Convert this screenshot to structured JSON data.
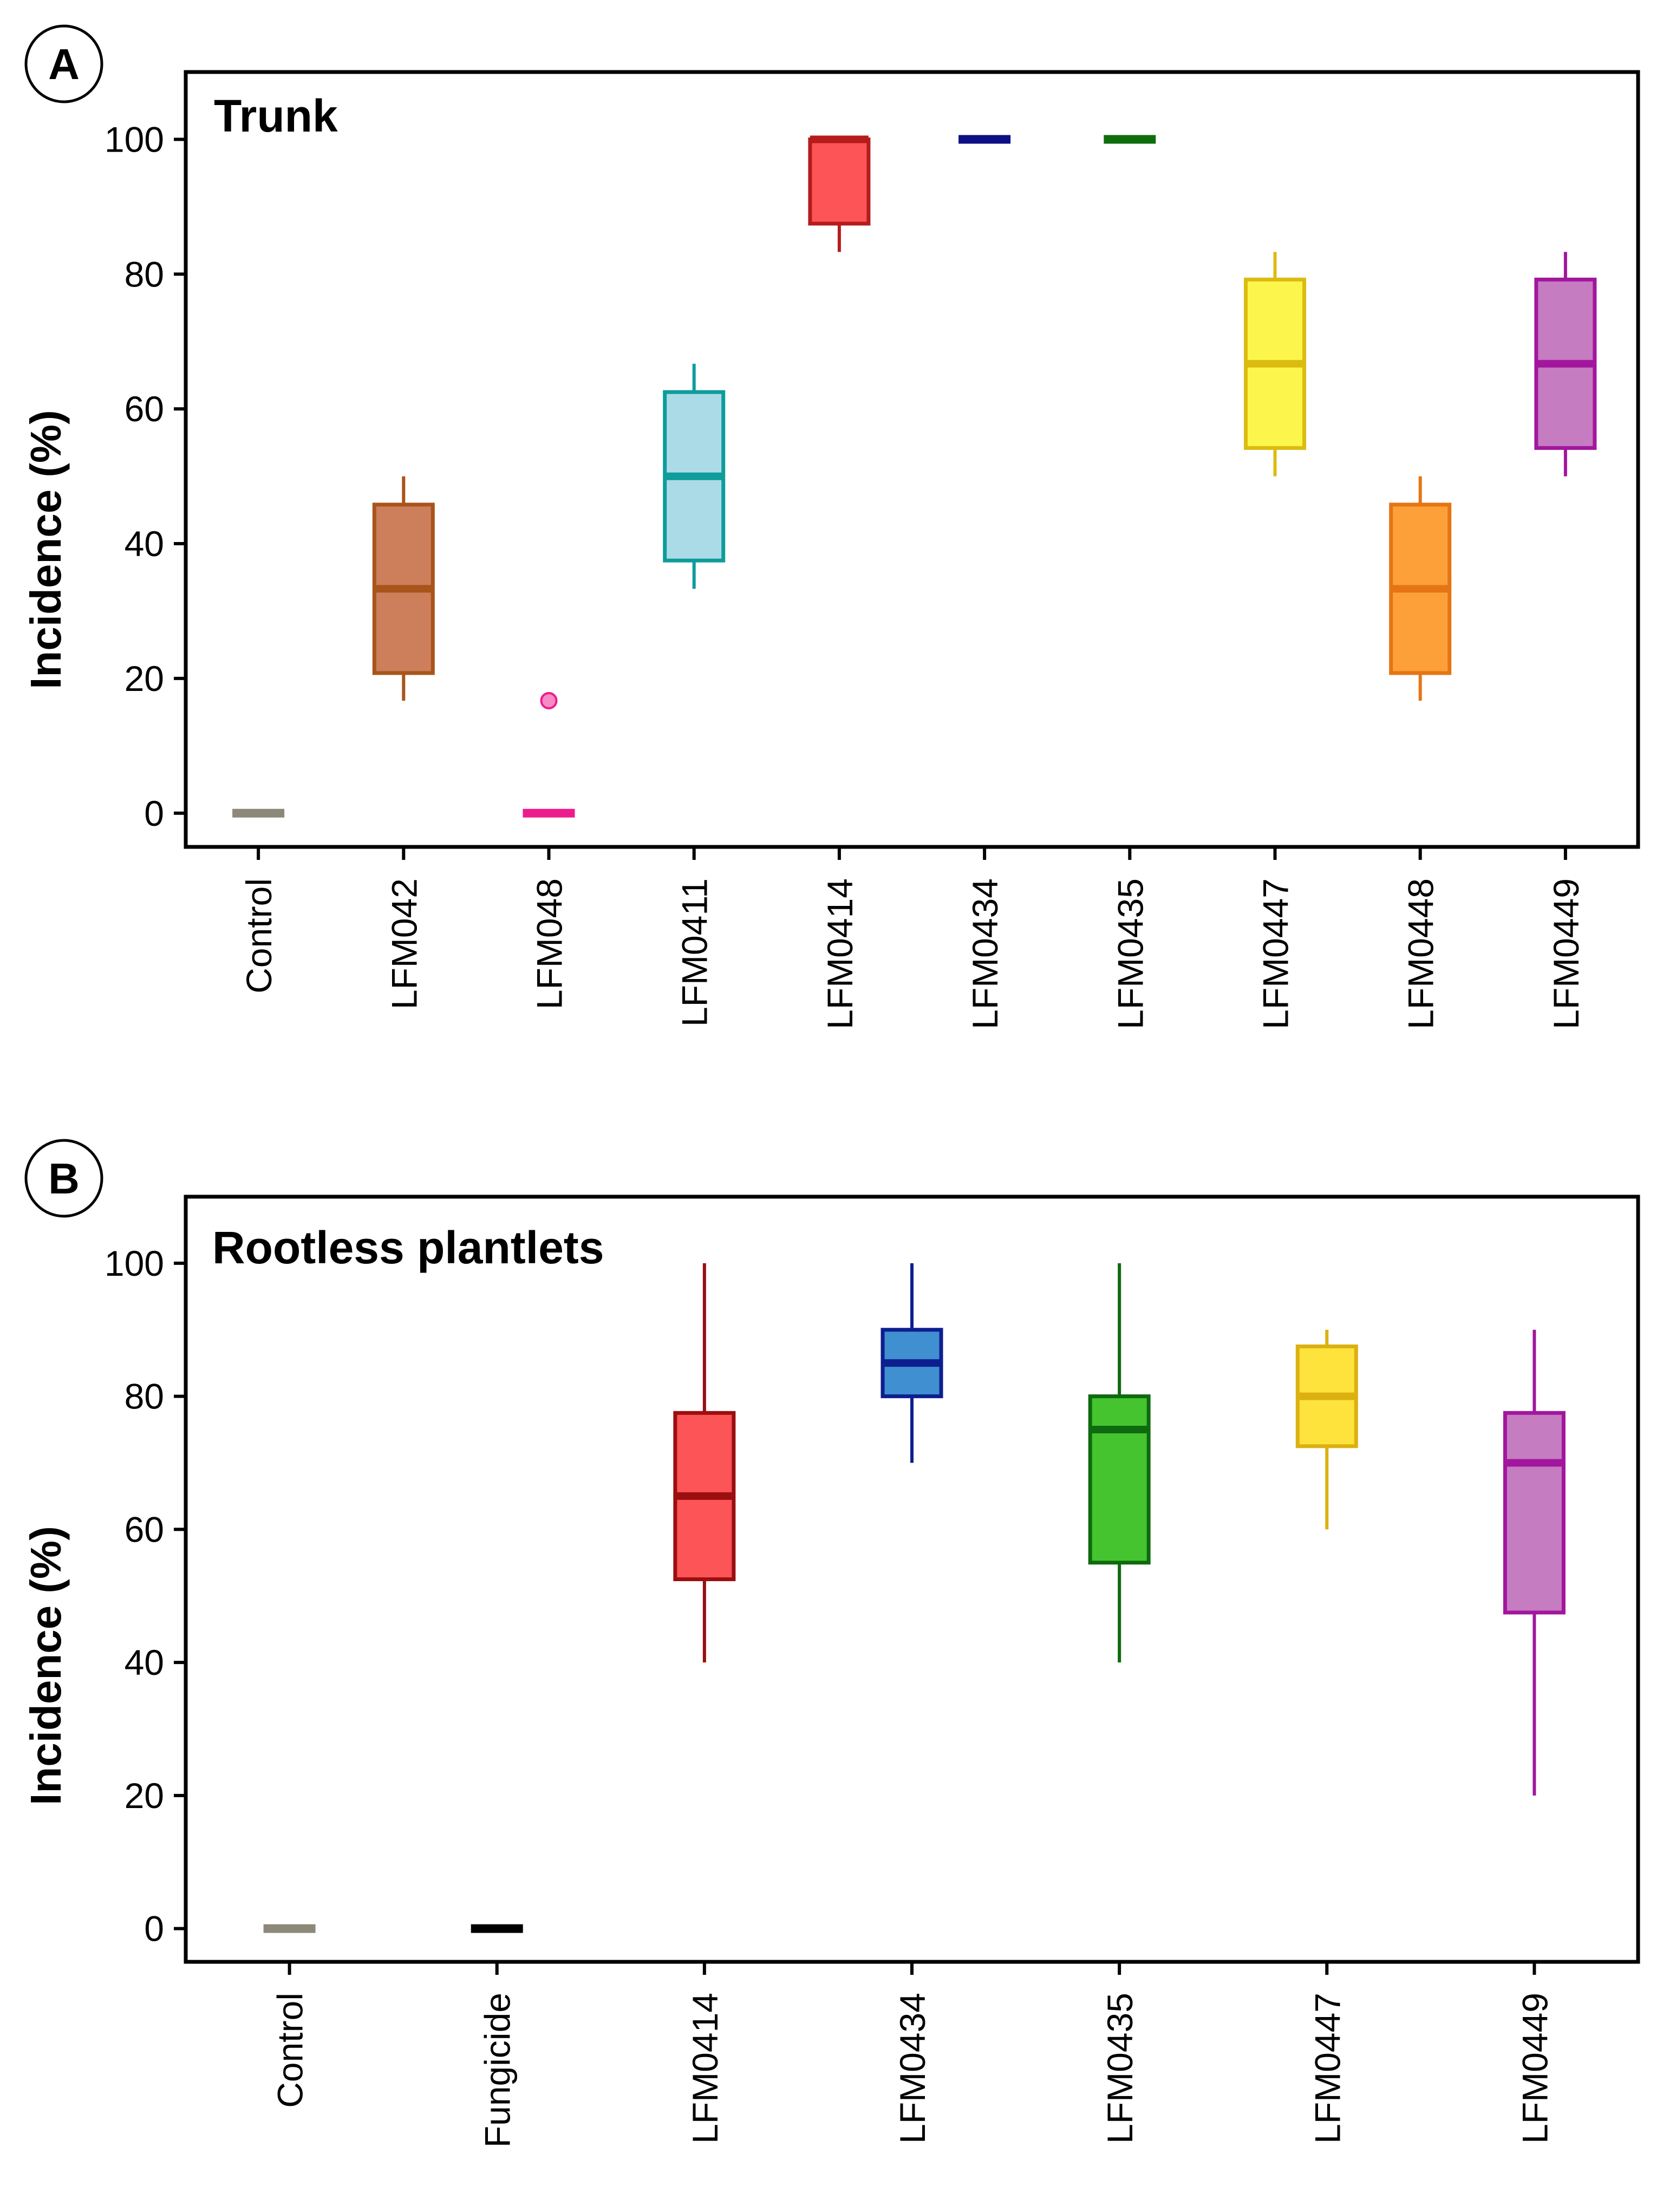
{
  "chart_data": [
    {
      "type": "boxplot",
      "panel_label": "A",
      "title": "Trunk",
      "ylabel": "Incidence (%)",
      "xlabel": "",
      "ylim": [
        -5,
        110
      ],
      "yticks": [
        0,
        20,
        40,
        60,
        80,
        100
      ],
      "ytick_labels": [
        "0",
        "20",
        "40",
        "60",
        "80",
        "100"
      ],
      "categories": [
        "Control",
        "LFM042",
        "LFM048",
        "LFM0411",
        "LFM0414",
        "LFM0434",
        "LFM0435",
        "LFM0447",
        "LFM0448",
        "LFM0449"
      ],
      "boxes": [
        {
          "category": "Control",
          "min": 0,
          "q1": 0,
          "median": 0,
          "q3": 0,
          "max": 0,
          "outliers": [],
          "fill": "#b3ae9f",
          "stroke": "#8c887a"
        },
        {
          "category": "LFM042",
          "min": 16.7,
          "q1": 20.8,
          "median": 33.3,
          "q3": 45.8,
          "max": 50,
          "outliers": [],
          "fill": "#cd7f5c",
          "stroke": "#a9541a"
        },
        {
          "category": "LFM048",
          "min": 0,
          "q1": 0,
          "median": 0,
          "q3": 0,
          "max": 0,
          "outliers": [
            16.7
          ],
          "fill": "#f78cc4",
          "stroke": "#ee1b8c"
        },
        {
          "category": "LFM0411",
          "min": 33.3,
          "q1": 37.5,
          "median": 50,
          "q3": 62.5,
          "max": 66.7,
          "outliers": [],
          "fill": "#acdbe8",
          "stroke": "#0e9c9c"
        },
        {
          "category": "LFM0414",
          "min": 83.3,
          "q1": 87.5,
          "median": 100,
          "q3": 100,
          "max": 100,
          "outliers": [],
          "fill": "#fd5458",
          "stroke": "#b51c1c"
        },
        {
          "category": "LFM0434",
          "min": 100,
          "q1": 100,
          "median": 100,
          "q3": 100,
          "max": 100,
          "outliers": [],
          "fill": "#1d1f8f",
          "stroke": "#0d0f84"
        },
        {
          "category": "LFM0435",
          "min": 100,
          "q1": 100,
          "median": 100,
          "q3": 100,
          "max": 100,
          "outliers": [],
          "fill": "#1a7a1a",
          "stroke": "#0e6e0e"
        },
        {
          "category": "LFM0447",
          "min": 50,
          "q1": 54.2,
          "median": 66.7,
          "q3": 79.2,
          "max": 83.3,
          "outliers": [],
          "fill": "#fcf64c",
          "stroke": "#dcbb10"
        },
        {
          "category": "LFM0448",
          "min": 16.7,
          "q1": 20.8,
          "median": 33.3,
          "q3": 45.8,
          "max": 50,
          "outliers": [],
          "fill": "#fda03a",
          "stroke": "#e57514"
        },
        {
          "category": "LFM0449",
          "min": 50,
          "q1": 54.2,
          "median": 66.7,
          "q3": 79.2,
          "max": 83.3,
          "outliers": [],
          "fill": "#c57cc1",
          "stroke": "#a2169e"
        }
      ]
    },
    {
      "type": "boxplot",
      "panel_label": "B",
      "title": "Rootless plantlets",
      "ylabel": "Incidence (%)",
      "xlabel": "",
      "ylim": [
        -5,
        110
      ],
      "yticks": [
        0,
        20,
        40,
        60,
        80,
        100
      ],
      "ytick_labels": [
        "0",
        "20",
        "40",
        "60",
        "80",
        "100"
      ],
      "categories": [
        "Control",
        "Fungicide",
        "LFM0414",
        "LFM0434",
        "LFM0435",
        "LFM0447",
        "LFM0449"
      ],
      "boxes": [
        {
          "category": "Control",
          "min": 0,
          "q1": 0,
          "median": 0,
          "q3": 0,
          "max": 0,
          "outliers": [],
          "fill": "#b3ae9f",
          "stroke": "#8c887a"
        },
        {
          "category": "Fungicide",
          "min": 0,
          "q1": 0,
          "median": 0,
          "q3": 0,
          "max": 0,
          "outliers": [],
          "fill": "#000000",
          "stroke": "#000000"
        },
        {
          "category": "LFM0414",
          "min": 40,
          "q1": 52.5,
          "median": 65,
          "q3": 77.5,
          "max": 100,
          "outliers": [],
          "fill": "#fd5458",
          "stroke": "#9a0f0f"
        },
        {
          "category": "LFM0434",
          "min": 70,
          "q1": 80,
          "median": 85,
          "q3": 90,
          "max": 100,
          "outliers": [],
          "fill": "#3f8fd1",
          "stroke": "#0d1f8f"
        },
        {
          "category": "LFM0435",
          "min": 40,
          "q1": 55,
          "median": 75,
          "q3": 80,
          "max": 100,
          "outliers": [],
          "fill": "#45c42f",
          "stroke": "#0e6a0e"
        },
        {
          "category": "LFM0447",
          "min": 60,
          "q1": 72.5,
          "median": 80,
          "q3": 87.5,
          "max": 90,
          "outliers": [],
          "fill": "#fde33c",
          "stroke": "#dcb010"
        },
        {
          "category": "LFM0449",
          "min": 20,
          "q1": 47.5,
          "median": 70,
          "q3": 77.5,
          "max": 90,
          "outliers": [],
          "fill": "#c57cc1",
          "stroke": "#a2169e"
        }
      ]
    }
  ]
}
